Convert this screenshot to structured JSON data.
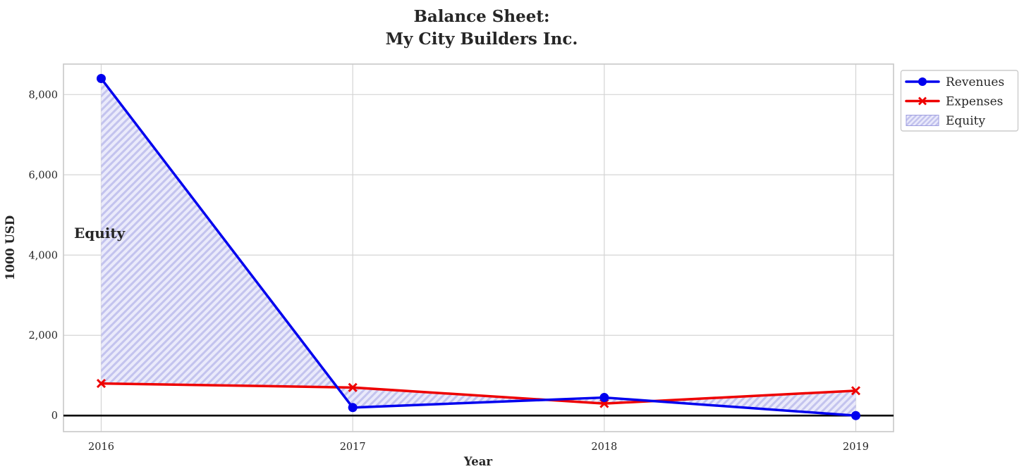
{
  "chart_data": {
    "type": "line",
    "title": "Balance Sheet:\nMy City Builders Inc.",
    "title_line1": "Balance Sheet:",
    "title_line2": "My City Builders Inc.",
    "xlabel": "Year",
    "ylabel": "1000 USD",
    "x": [
      2016,
      2017,
      2018,
      2019
    ],
    "xtick_labels": [
      "2016",
      "2017",
      "2018",
      "2019"
    ],
    "ytick_values": [
      0,
      2000,
      4000,
      6000,
      8000
    ],
    "ytick_labels": [
      "0",
      "2,000",
      "4,000",
      "6,000",
      "8,000"
    ],
    "xlim": [
      2015.85,
      2019.15
    ],
    "ylim": [
      -400,
      8760
    ],
    "grid": true,
    "zero_line": true,
    "zero_line_color": "#000000",
    "series": [
      {
        "name": "Revenues",
        "color": "#0000ee",
        "marker": "circle",
        "values": [
          8400,
          200,
          450,
          0
        ]
      },
      {
        "name": "Expenses",
        "color": "#ee0000",
        "marker": "x",
        "values": [
          800,
          700,
          300,
          620
        ]
      }
    ],
    "fill_between": {
      "name": "Equity",
      "between": [
        "Revenues",
        "Expenses"
      ],
      "hatch": "//",
      "facecolor": "#eaeafb",
      "hatch_color": "#c3c3ee",
      "edge_color": "#9e9ee0"
    },
    "annotation": {
      "text": "Equity",
      "color": "#0000e0"
    },
    "legend": {
      "position": "upper-right-outside",
      "entries": [
        {
          "label": "Revenues",
          "type": "line-circle",
          "color": "#0000ee"
        },
        {
          "label": "Expenses",
          "type": "line-x",
          "color": "#ee0000"
        },
        {
          "label": "Equity",
          "type": "hatched-patch",
          "color": "#c9c9f2"
        }
      ]
    }
  }
}
